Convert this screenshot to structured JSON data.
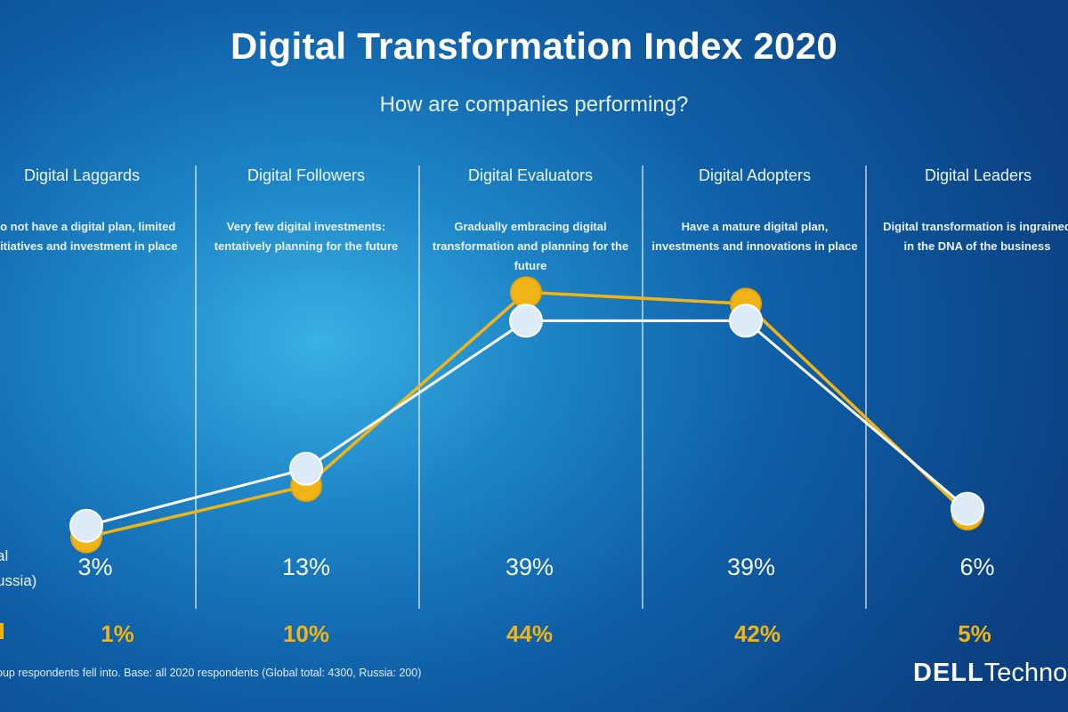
{
  "title": "Digital Transformation Index 2020",
  "subtitle": "How are companies performing?",
  "legend": {
    "global_label": "al\nussia)"
  },
  "footnote": "oup respondents fell into. Base: all 2020 respondents (Global total: 4300, Russia: 200)",
  "logo": {
    "brand": "DELL",
    "suffix": "Techno"
  },
  "colors": {
    "global_series": "#ffffff",
    "russia_series": "#f1b416",
    "marker_fill": "#dcebf7",
    "background_dark": "#0b3f80",
    "background_light": "#3ab0e3"
  },
  "columns": [
    {
      "title": "Digital Laggards",
      "description": "Do not have a digital plan, limited initiatives and investment in place",
      "global": "3%",
      "russia": "1%"
    },
    {
      "title": "Digital Followers",
      "description": "Very few digital investments: tentatively planning for the future",
      "global": "13%",
      "russia": "10%"
    },
    {
      "title": "Digital Evaluators",
      "description": "Gradually embracing digital transformation and planning for the future",
      "global": "39%",
      "russia": "44%"
    },
    {
      "title": "Digital Adopters",
      "description": "Have a mature digital plan, investments and innovations in place",
      "global": "39%",
      "russia": "42%"
    },
    {
      "title": "Digital Leaders",
      "description": "Digital transformation is ingrained in the DNA of the business",
      "global": "6%",
      "russia": "5%"
    }
  ],
  "chart_data": {
    "type": "line",
    "categories": [
      "Digital Laggards",
      "Digital Followers",
      "Digital Evaluators",
      "Digital Adopters",
      "Digital Leaders"
    ],
    "series": [
      {
        "values": [
          3,
          13,
          39,
          39,
          6
        ],
        "color": "#ffffff"
      },
      {
        "values": [
          1,
          10,
          44,
          42,
          5
        ],
        "color": "#f1b416"
      }
    ],
    "ylim": [
      0,
      50
    ],
    "grid": false,
    "value_labels": true
  }
}
